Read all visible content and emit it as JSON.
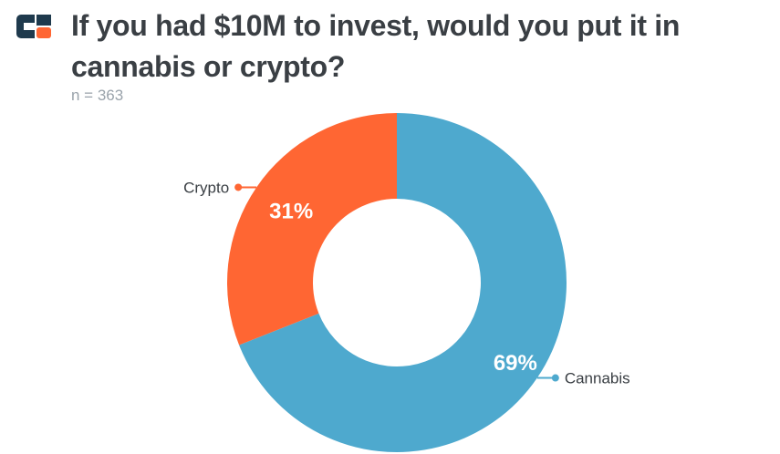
{
  "header": {
    "title": "If you had $10M to invest, would you put it in cannabis or crypto?",
    "subtitle": "n = 363",
    "logo_icon": "company-logo-icon"
  },
  "colors": {
    "cannabis": "#4ea9ce",
    "crypto": "#ff6633",
    "title": "#3a3f44",
    "subtitle": "#9aa3ab"
  },
  "chart_data": {
    "type": "pie",
    "donut": true,
    "title": "If you had $10M to invest, would you put it in cannabis or crypto?",
    "subtitle": "n = 363",
    "slices": [
      {
        "label": "Cannabis",
        "value": 69,
        "display": "69%",
        "color": "#4ea9ce"
      },
      {
        "label": "Crypto",
        "value": 31,
        "display": "31%",
        "color": "#ff6633"
      }
    ]
  }
}
